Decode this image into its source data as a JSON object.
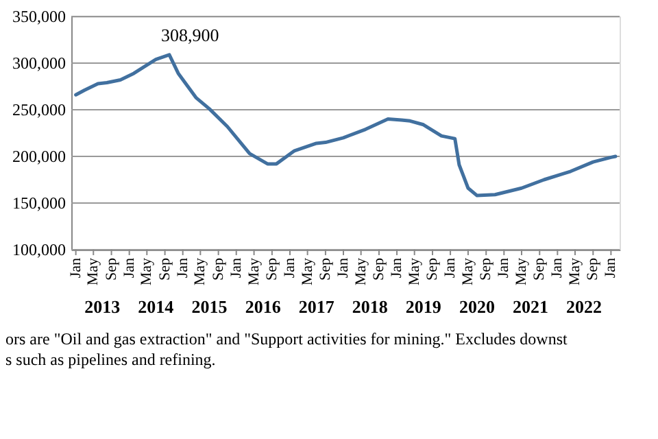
{
  "chart_data": {
    "type": "line",
    "x": [
      "2013-01",
      "2013-03",
      "2013-06",
      "2013-08",
      "2013-11",
      "2014-02",
      "2014-04",
      "2014-07",
      "2014-10",
      "2014-12",
      "2015-04",
      "2015-07",
      "2015-11",
      "2016-04",
      "2016-08",
      "2016-10",
      "2017-02",
      "2017-07",
      "2017-09",
      "2018-01",
      "2018-06",
      "2018-11",
      "2019-02",
      "2019-04",
      "2019-07",
      "2019-11",
      "2020-02",
      "2020-03",
      "2020-05",
      "2020-07",
      "2020-11",
      "2021-05",
      "2021-10",
      "2022-04",
      "2022-09",
      "2023-01",
      "2023-02"
    ],
    "series": [
      {
        "color": "#41709f",
        "values": [
          266000,
          271000,
          278000,
          279000,
          282000,
          289000,
          295000,
          304000,
          308900,
          289000,
          263000,
          251000,
          232000,
          203000,
          192000,
          192000,
          206000,
          214000,
          215000,
          220000,
          229000,
          240000,
          239000,
          238000,
          234000,
          222000,
          219000,
          191000,
          166000,
          158000,
          159000,
          166000,
          175000,
          184000,
          194000,
          199000,
          200000
        ]
      }
    ],
    "xlim": [
      "2012-12",
      "2023-03"
    ],
    "xticks": [
      {
        "value": "2013-01",
        "label": "Jan"
      },
      {
        "value": "2013-05",
        "label": "May"
      },
      {
        "value": "2013-09",
        "label": "Sep"
      },
      {
        "value": "2014-01",
        "label": "Jan"
      },
      {
        "value": "2014-05",
        "label": "May"
      },
      {
        "value": "2014-09",
        "label": "Sep"
      },
      {
        "value": "2015-01",
        "label": "Jan"
      },
      {
        "value": "2015-05",
        "label": "May"
      },
      {
        "value": "2015-09",
        "label": "Sep"
      },
      {
        "value": "2016-01",
        "label": "Jan"
      },
      {
        "value": "2016-05",
        "label": "May"
      },
      {
        "value": "2016-09",
        "label": "Sep"
      },
      {
        "value": "2017-01",
        "label": "Jan"
      },
      {
        "value": "2017-05",
        "label": "May"
      },
      {
        "value": "2017-09",
        "label": "Sep"
      },
      {
        "value": "2018-01",
        "label": "Jan"
      },
      {
        "value": "2018-05",
        "label": "May"
      },
      {
        "value": "2018-09",
        "label": "Sep"
      },
      {
        "value": "2019-01",
        "label": "Jan"
      },
      {
        "value": "2019-05",
        "label": "May"
      },
      {
        "value": "2019-09",
        "label": "Sep"
      },
      {
        "value": "2020-01",
        "label": "Jan"
      },
      {
        "value": "2020-05",
        "label": "May"
      },
      {
        "value": "2020-09",
        "label": "Sep"
      },
      {
        "value": "2021-01",
        "label": "Jan"
      },
      {
        "value": "2021-05",
        "label": "May"
      },
      {
        "value": "2021-09",
        "label": "Sep"
      },
      {
        "value": "2022-01",
        "label": "Jan"
      },
      {
        "value": "2022-05",
        "label": "May"
      },
      {
        "value": "2022-09",
        "label": "Sep"
      },
      {
        "value": "2023-01",
        "label": "Jan"
      }
    ],
    "ylim": [
      100000,
      350000
    ],
    "yticks": [
      {
        "value": 100000,
        "label": "100,000"
      },
      {
        "value": 150000,
        "label": "150,000"
      },
      {
        "value": 200000,
        "label": "200,000"
      },
      {
        "value": 250000,
        "label": "250,000"
      },
      {
        "value": 300000,
        "label": "300,000"
      },
      {
        "value": 350000,
        "label": "350,000"
      }
    ],
    "grid": "y",
    "legend": false,
    "marker": "none",
    "line_style": "solid",
    "annotations": [
      {
        "text": "308,900",
        "x": "2014-10",
        "y": 308900
      },
      "2013",
      "2014",
      "2015",
      "2016",
      "2017",
      "2018",
      "2019",
      "2020",
      "2021",
      "2022",
      "ors are \"Oil and gas extraction\" and \"Support activities for mining.\"  Excludes downst",
      "s such as pipelines and refining."
    ]
  }
}
